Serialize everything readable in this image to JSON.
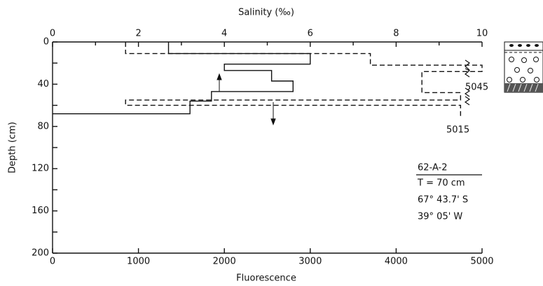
{
  "chart_data": {
    "type": "step-profile",
    "x_label": "Fluorescence",
    "x2_label": "Salinity (‰)",
    "y_label": "Depth (cm)",
    "xlim": [
      0,
      5000
    ],
    "xticks": [
      0,
      1000,
      2000,
      3000,
      4000,
      5000
    ],
    "x2lim": [
      0,
      10
    ],
    "x2ticks": [
      0,
      2,
      4,
      6,
      8,
      10
    ],
    "x2_minor_ticks": [
      1,
      3,
      5,
      7,
      9
    ],
    "ylim": [
      0,
      200
    ],
    "yticks": [
      0,
      40,
      80,
      120,
      160,
      200
    ],
    "y_minor_ticks": [
      20,
      60,
      100,
      140,
      180
    ],
    "y_inverted": true,
    "series": [
      {
        "axis": "x",
        "style": "solid",
        "color": "#111",
        "x": [
          1350,
          1350,
          3000,
          3000,
          2000,
          2000,
          2550,
          2550,
          2800,
          2800,
          1850,
          1850,
          1600,
          1600,
          0
        ],
        "y": [
          0,
          11,
          11,
          21,
          21,
          27,
          27,
          37,
          37,
          47,
          47,
          56,
          56,
          68,
          68
        ]
      },
      {
        "axis": "x2",
        "style": "dashed",
        "color": "#111",
        "x": [
          1.7,
          1.7,
          7.4,
          7.4,
          10,
          10,
          8.6,
          8.6,
          9.5,
          9.5,
          1.7,
          1.7,
          9.5,
          9.5
        ],
        "y": [
          0,
          11,
          11,
          22,
          22,
          28,
          28,
          48,
          48,
          55,
          55,
          60,
          60,
          70
        ]
      }
    ],
    "annotations": [
      "5045",
      "5015"
    ],
    "station": {
      "id": "62-A-2",
      "lines": [
        "T = 70 cm",
        "67° 43.7' S",
        "39° 05' W"
      ]
    }
  }
}
